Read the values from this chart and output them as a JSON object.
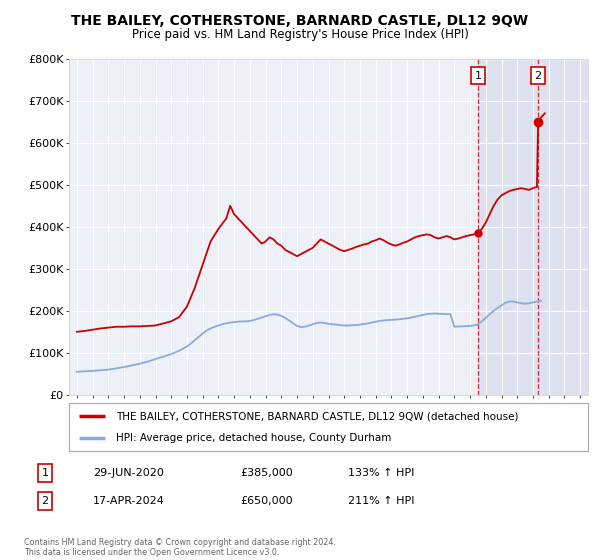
{
  "title": "THE BAILEY, COTHERSTONE, BARNARD CASTLE, DL12 9QW",
  "subtitle": "Price paid vs. HM Land Registry's House Price Index (HPI)",
  "ylim": [
    0,
    800000
  ],
  "yticks": [
    0,
    100000,
    200000,
    300000,
    400000,
    500000,
    600000,
    700000,
    800000
  ],
  "ytick_labels": [
    "£0",
    "£100K",
    "£200K",
    "£300K",
    "£400K",
    "£500K",
    "£600K",
    "£700K",
    "£800K"
  ],
  "background_color": "#ffffff",
  "plot_bg_color": "#eef0f8",
  "plot_bg_color_right": "#dde0ee",
  "grid_color": "#ffffff",
  "red_line_color": "#cc0000",
  "blue_line_color": "#88aadd",
  "xlim_left": 1994.5,
  "xlim_right": 2027.5,
  "marker1_x": 2020.5,
  "marker1_y": 385000,
  "marker2_x": 2024.33,
  "marker2_y": 650000,
  "shade_start": 2020.5,
  "legend_line1": "THE BAILEY, COTHERSTONE, BARNARD CASTLE, DL12 9QW (detached house)",
  "legend_line2": "HPI: Average price, detached house, County Durham",
  "annotation1_label": "1",
  "annotation1_date": "29-JUN-2020",
  "annotation1_price": "£385,000",
  "annotation1_hpi": "133% ↑ HPI",
  "annotation2_label": "2",
  "annotation2_date": "17-APR-2024",
  "annotation2_price": "£650,000",
  "annotation2_hpi": "211% ↑ HPI",
  "footnote": "Contains HM Land Registry data © Crown copyright and database right 2024.\nThis data is licensed under the Open Government Licence v3.0.",
  "hpi_data": [
    [
      1995.0,
      55000
    ],
    [
      1995.25,
      55500
    ],
    [
      1995.5,
      56000
    ],
    [
      1995.75,
      56500
    ],
    [
      1996.0,
      57000
    ],
    [
      1996.25,
      57800
    ],
    [
      1996.5,
      58500
    ],
    [
      1996.75,
      59200
    ],
    [
      1997.0,
      60000
    ],
    [
      1997.25,
      61500
    ],
    [
      1997.5,
      63000
    ],
    [
      1997.75,
      64500
    ],
    [
      1998.0,
      66000
    ],
    [
      1998.25,
      68000
    ],
    [
      1998.5,
      70000
    ],
    [
      1998.75,
      72000
    ],
    [
      1999.0,
      74000
    ],
    [
      1999.25,
      76500
    ],
    [
      1999.5,
      79000
    ],
    [
      1999.75,
      82000
    ],
    [
      2000.0,
      85000
    ],
    [
      2000.25,
      88000
    ],
    [
      2000.5,
      91000
    ],
    [
      2000.75,
      94000
    ],
    [
      2001.0,
      97000
    ],
    [
      2001.25,
      101000
    ],
    [
      2001.5,
      105000
    ],
    [
      2001.75,
      110000
    ],
    [
      2002.0,
      115000
    ],
    [
      2002.25,
      122000
    ],
    [
      2002.5,
      130000
    ],
    [
      2002.75,
      138000
    ],
    [
      2003.0,
      146000
    ],
    [
      2003.25,
      153000
    ],
    [
      2003.5,
      158000
    ],
    [
      2003.75,
      162000
    ],
    [
      2004.0,
      165000
    ],
    [
      2004.25,
      168000
    ],
    [
      2004.5,
      170000
    ],
    [
      2004.75,
      172000
    ],
    [
      2005.0,
      173000
    ],
    [
      2005.25,
      174000
    ],
    [
      2005.5,
      174500
    ],
    [
      2005.75,
      175000
    ],
    [
      2006.0,
      176000
    ],
    [
      2006.25,
      178000
    ],
    [
      2006.5,
      181000
    ],
    [
      2006.75,
      184000
    ],
    [
      2007.0,
      187000
    ],
    [
      2007.25,
      190000
    ],
    [
      2007.5,
      192000
    ],
    [
      2007.75,
      191000
    ],
    [
      2008.0,
      188000
    ],
    [
      2008.25,
      183000
    ],
    [
      2008.5,
      177000
    ],
    [
      2008.75,
      170000
    ],
    [
      2009.0,
      164000
    ],
    [
      2009.25,
      161000
    ],
    [
      2009.5,
      162000
    ],
    [
      2009.75,
      165000
    ],
    [
      2010.0,
      168000
    ],
    [
      2010.25,
      171000
    ],
    [
      2010.5,
      172000
    ],
    [
      2010.75,
      171000
    ],
    [
      2011.0,
      169000
    ],
    [
      2011.25,
      168000
    ],
    [
      2011.5,
      167000
    ],
    [
      2011.75,
      166000
    ],
    [
      2012.0,
      165000
    ],
    [
      2012.25,
      165000
    ],
    [
      2012.5,
      165500
    ],
    [
      2012.75,
      166000
    ],
    [
      2013.0,
      167000
    ],
    [
      2013.25,
      168500
    ],
    [
      2013.5,
      170000
    ],
    [
      2013.75,
      172000
    ],
    [
      2014.0,
      174000
    ],
    [
      2014.25,
      176000
    ],
    [
      2014.5,
      177000
    ],
    [
      2014.75,
      178000
    ],
    [
      2015.0,
      178500
    ],
    [
      2015.25,
      179000
    ],
    [
      2015.5,
      180000
    ],
    [
      2015.75,
      181000
    ],
    [
      2016.0,
      182000
    ],
    [
      2016.25,
      184000
    ],
    [
      2016.5,
      186000
    ],
    [
      2016.75,
      188000
    ],
    [
      2017.0,
      190000
    ],
    [
      2017.25,
      192000
    ],
    [
      2017.5,
      193000
    ],
    [
      2017.75,
      193500
    ],
    [
      2018.0,
      193000
    ],
    [
      2018.25,
      192500
    ],
    [
      2018.5,
      192000
    ],
    [
      2018.75,
      192000
    ],
    [
      2019.0,
      162000
    ],
    [
      2019.25,
      162500
    ],
    [
      2019.5,
      163000
    ],
    [
      2019.75,
      163500
    ],
    [
      2020.0,
      164000
    ],
    [
      2020.25,
      165000
    ],
    [
      2020.5,
      168000
    ],
    [
      2020.75,
      175000
    ],
    [
      2021.0,
      183000
    ],
    [
      2021.25,
      192000
    ],
    [
      2021.5,
      200000
    ],
    [
      2021.75,
      207000
    ],
    [
      2022.0,
      213000
    ],
    [
      2022.25,
      219000
    ],
    [
      2022.5,
      222000
    ],
    [
      2022.75,
      222000
    ],
    [
      2023.0,
      220000
    ],
    [
      2023.25,
      218000
    ],
    [
      2023.5,
      217000
    ],
    [
      2023.75,
      218000
    ],
    [
      2024.0,
      220000
    ],
    [
      2024.25,
      222000
    ],
    [
      2024.5,
      224000
    ]
  ],
  "price_data": [
    [
      1995.0,
      150000
    ],
    [
      1995.5,
      152000
    ],
    [
      1996.0,
      155000
    ],
    [
      1996.5,
      158000
    ],
    [
      1997.0,
      160000
    ],
    [
      1997.5,
      162000
    ],
    [
      1998.0,
      162000
    ],
    [
      1998.5,
      163000
    ],
    [
      1999.0,
      163000
    ],
    [
      1999.5,
      164000
    ],
    [
      2000.0,
      165000
    ],
    [
      2000.5,
      170000
    ],
    [
      2001.0,
      175000
    ],
    [
      2001.5,
      185000
    ],
    [
      2002.0,
      210000
    ],
    [
      2002.5,
      255000
    ],
    [
      2003.0,
      310000
    ],
    [
      2003.5,
      365000
    ],
    [
      2004.0,
      395000
    ],
    [
      2004.5,
      420000
    ],
    [
      2004.75,
      450000
    ],
    [
      2005.0,
      430000
    ],
    [
      2005.5,
      410000
    ],
    [
      2006.0,
      390000
    ],
    [
      2006.25,
      380000
    ],
    [
      2006.5,
      370000
    ],
    [
      2006.75,
      360000
    ],
    [
      2007.0,
      365000
    ],
    [
      2007.25,
      375000
    ],
    [
      2007.5,
      370000
    ],
    [
      2007.75,
      360000
    ],
    [
      2008.0,
      355000
    ],
    [
      2008.25,
      345000
    ],
    [
      2008.5,
      340000
    ],
    [
      2008.75,
      335000
    ],
    [
      2009.0,
      330000
    ],
    [
      2009.25,
      335000
    ],
    [
      2009.5,
      340000
    ],
    [
      2009.75,
      345000
    ],
    [
      2010.0,
      350000
    ],
    [
      2010.25,
      360000
    ],
    [
      2010.5,
      370000
    ],
    [
      2010.75,
      365000
    ],
    [
      2011.0,
      360000
    ],
    [
      2011.25,
      355000
    ],
    [
      2011.5,
      350000
    ],
    [
      2011.75,
      345000
    ],
    [
      2012.0,
      342000
    ],
    [
      2012.25,
      345000
    ],
    [
      2012.5,
      348000
    ],
    [
      2012.75,
      352000
    ],
    [
      2013.0,
      355000
    ],
    [
      2013.25,
      358000
    ],
    [
      2013.5,
      360000
    ],
    [
      2013.75,
      365000
    ],
    [
      2014.0,
      368000
    ],
    [
      2014.25,
      372000
    ],
    [
      2014.5,
      368000
    ],
    [
      2014.75,
      362000
    ],
    [
      2015.0,
      358000
    ],
    [
      2015.25,
      355000
    ],
    [
      2015.5,
      358000
    ],
    [
      2015.75,
      362000
    ],
    [
      2016.0,
      365000
    ],
    [
      2016.25,
      370000
    ],
    [
      2016.5,
      375000
    ],
    [
      2016.75,
      378000
    ],
    [
      2017.0,
      380000
    ],
    [
      2017.25,
      382000
    ],
    [
      2017.5,
      380000
    ],
    [
      2017.75,
      375000
    ],
    [
      2018.0,
      372000
    ],
    [
      2018.25,
      375000
    ],
    [
      2018.5,
      378000
    ],
    [
      2018.75,
      375000
    ],
    [
      2019.0,
      370000
    ],
    [
      2019.25,
      372000
    ],
    [
      2019.5,
      375000
    ],
    [
      2019.75,
      378000
    ],
    [
      2020.0,
      380000
    ],
    [
      2020.25,
      382000
    ],
    [
      2020.5,
      385000
    ],
    [
      2020.75,
      395000
    ],
    [
      2021.0,
      410000
    ],
    [
      2021.25,
      430000
    ],
    [
      2021.5,
      450000
    ],
    [
      2021.75,
      465000
    ],
    [
      2022.0,
      475000
    ],
    [
      2022.25,
      480000
    ],
    [
      2022.5,
      485000
    ],
    [
      2022.75,
      488000
    ],
    [
      2023.0,
      490000
    ],
    [
      2023.25,
      492000
    ],
    [
      2023.5,
      490000
    ],
    [
      2023.75,
      488000
    ],
    [
      2024.0,
      492000
    ],
    [
      2024.25,
      495000
    ],
    [
      2024.33,
      650000
    ],
    [
      2024.5,
      660000
    ],
    [
      2024.75,
      670000
    ]
  ]
}
